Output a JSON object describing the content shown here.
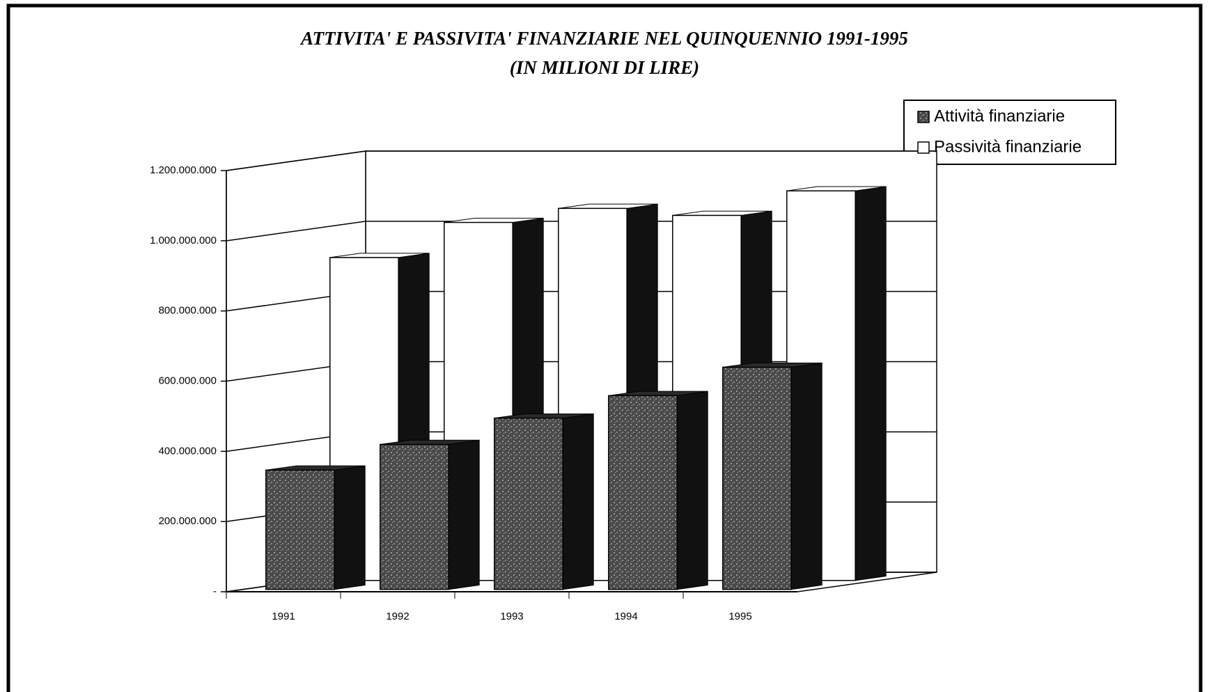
{
  "chart_data": {
    "type": "bar3d",
    "title": "ATTIVITA' E PASSIVITA' FINANZIARIE NEL QUINQUENNIO 1991-1995",
    "subtitle": "(IN MILIONI DI LIRE)",
    "categories": [
      "1991",
      "1992",
      "1993",
      "1994",
      "1995"
    ],
    "series": [
      {
        "name": "Attività finanziarie",
        "color": "#4a4a4a",
        "values": [
          340000000,
          413000000,
          488000000,
          552000000,
          633000000
        ]
      },
      {
        "name": "Passività finanziarie",
        "color": "#ffffff",
        "values": [
          920000000,
          1020000000,
          1060000000,
          1040000000,
          1110000000
        ]
      }
    ],
    "ylim": [
      0,
      1200000000
    ],
    "yticks": [
      {
        "value": 0,
        "label": "-"
      },
      {
        "value": 200000000,
        "label": "200.000.000"
      },
      {
        "value": 400000000,
        "label": "400.000.000"
      },
      {
        "value": 600000000,
        "label": "600.000.000"
      },
      {
        "value": 800000000,
        "label": "800.000.000"
      },
      {
        "value": 1000000000,
        "label": "1.000.000.000"
      },
      {
        "value": 1200000000,
        "label": "1.200.000.000"
      }
    ],
    "grid": true,
    "legend": "top-right"
  }
}
